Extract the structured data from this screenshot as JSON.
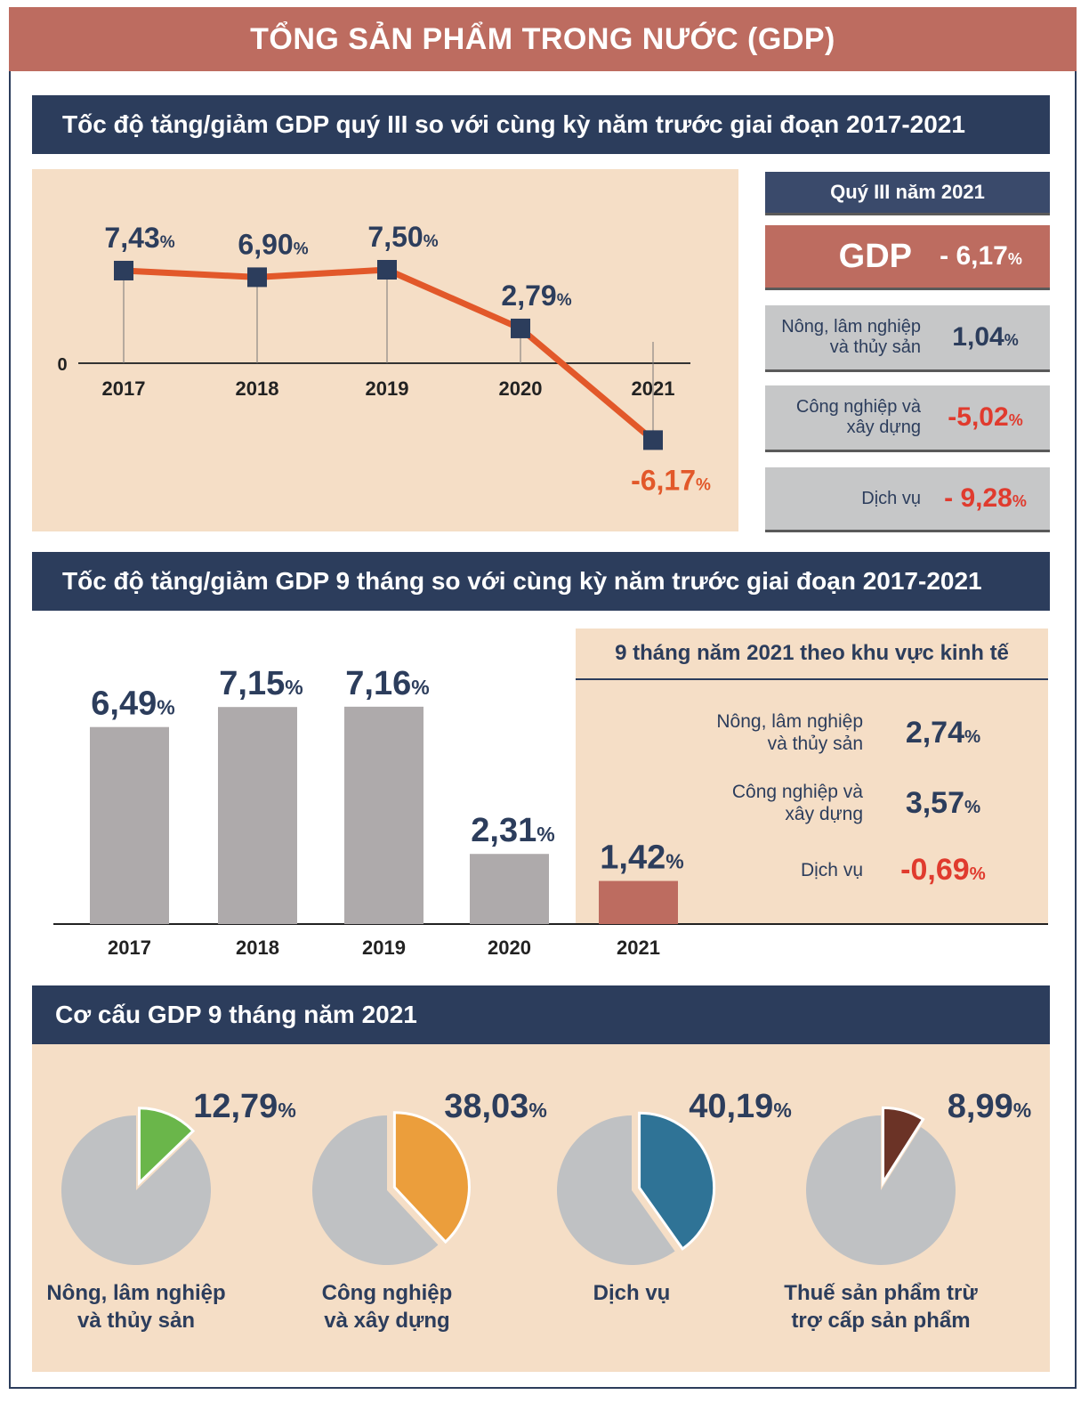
{
  "title": "TỔNG SẢN PHẨM TRONG NƯỚC (GDP)",
  "section1": {
    "header": "Tốc độ tăng/giảm GDP quý III so với cùng kỳ năm trước giai đoạn 2017-2021",
    "zero_label": "0",
    "summary": {
      "period": "Quý III năm 2021",
      "gdp_label": "GDP",
      "gdp_value": "- 6,17",
      "rows": [
        {
          "label_line1": "Nông, lâm nghiệp",
          "label_line2": "và thủy sản",
          "value": "1,04",
          "color": "#2c3d5c"
        },
        {
          "label_line1": "Công nghiệp và",
          "label_line2": "xây dựng",
          "value": "-5,02",
          "color": "#e03b2e"
        },
        {
          "label_line1": "Dịch vụ",
          "label_line2": "",
          "value": "- 9,28",
          "color": "#e03b2e"
        }
      ]
    }
  },
  "section2": {
    "header": "Tốc độ tăng/giảm GDP 9 tháng so với cùng kỳ năm trước giai đoạn 2017-2021",
    "panel_title": "9 tháng năm 2021 theo khu vực kinh tế",
    "sectors": [
      {
        "label_line1": "Nông, lâm nghiệp",
        "label_line2": "và thủy sản",
        "value": "2,74",
        "color": "#2c3d5c"
      },
      {
        "label_line1": "Công nghiệp và",
        "label_line2": "xây dựng",
        "value": "3,57",
        "color": "#2c3d5c"
      },
      {
        "label_line1": "Dịch vụ",
        "label_line2": "",
        "value": "-0,69",
        "color": "#e03b2e"
      }
    ]
  },
  "section3": {
    "header": "Cơ cấu GDP 9 tháng năm 2021"
  },
  "percent_sign": "%",
  "colors": {
    "navy": "#2c3d5c",
    "accent_red": "#bd6c60",
    "negative_red": "#e03b2e",
    "line_orange": "#e2582a",
    "bar_gray": "#aeaaab",
    "pie_gray": "#bfc1c3",
    "peach": "#f5dec6"
  },
  "chart_data": [
    {
      "type": "line",
      "x": [
        "2017",
        "2018",
        "2019",
        "2020",
        "2021"
      ],
      "series": [
        {
          "values": [
            7.43,
            6.9,
            7.5,
            2.79,
            -6.17
          ],
          "labels": [
            "7,43",
            "6,90",
            "7,50",
            "2,79",
            "-6,17"
          ]
        }
      ],
      "ylim": [
        -8,
        9
      ],
      "grid": false
    },
    {
      "type": "bar",
      "categories": [
        "2017",
        "2018",
        "2019",
        "2020",
        "2021"
      ],
      "values": [
        6.49,
        7.15,
        7.16,
        2.31,
        1.42
      ],
      "labels": [
        "6,49",
        "7,15",
        "7,16",
        "2,31",
        "1,42"
      ],
      "ylim": [
        0,
        8
      ]
    },
    {
      "type": "pie",
      "slices": [
        {
          "label_line1": "Nông, lâm nghiệp",
          "label_line2": "và thủy sản",
          "value": 12.79,
          "value_label": "12,79",
          "color": "#6ab64a"
        },
        {
          "label_line1": "Công nghiệp",
          "label_line2": "và xây dựng",
          "value": 38.03,
          "value_label": "38,03",
          "color": "#eb9e3c"
        },
        {
          "label_line1": "Dịch vụ",
          "label_line2": "",
          "value": 40.19,
          "value_label": "40,19",
          "color": "#2f7396"
        },
        {
          "label_line1": "Thuế sản phẩm trừ",
          "label_line2": "trợ cấp sản phẩm",
          "value": 8.99,
          "value_label": "8,99",
          "color": "#6b3326"
        }
      ]
    }
  ]
}
